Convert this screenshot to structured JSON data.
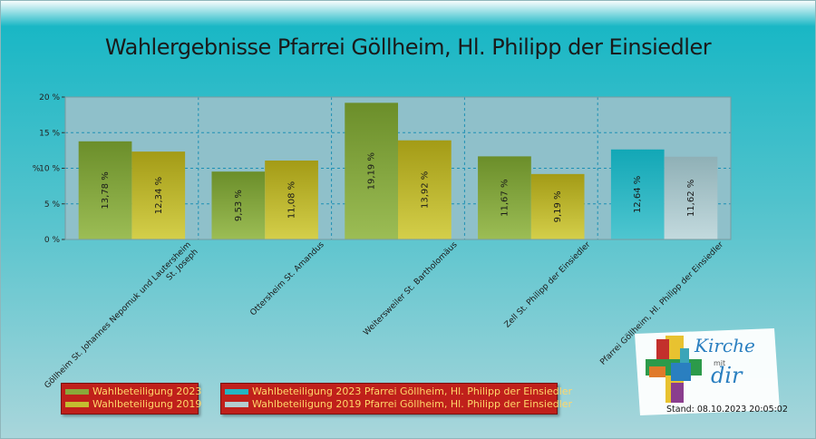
{
  "chart_data": {
    "type": "bar",
    "title": "Wahlergebnisse Pfarrei Göllheim, Hl. Philipp der Einsiedler",
    "ylabel": "%",
    "ylim": [
      0,
      20
    ],
    "yticks": [
      "0 %",
      "5 %",
      "10 %",
      "15 %",
      "20 %"
    ],
    "grid": true,
    "categories": [
      "Göllheim St. Johannes Nepomuk und Lautersheim St. Joseph",
      "Ottersheim St. Amandus",
      "Weitersweiler St. Bartholomäus",
      "Zell St. Philipp der Einsiedler",
      "Pfarrei Göllheim, Hl. Philipp der Einsiedler"
    ],
    "series": [
      {
        "name": "Wahlbeteiligung 2023",
        "values": [
          13.78,
          9.53,
          19.19,
          11.67,
          null
        ],
        "labels": [
          "13,78 %",
          "9,53 %",
          "19,19 %",
          "11,67 %",
          ""
        ],
        "color": "#7a9a32"
      },
      {
        "name": "Wahlbeteiligung 2019",
        "values": [
          12.34,
          11.08,
          13.92,
          9.19,
          null
        ],
        "labels": [
          "12,34 %",
          "11,08 %",
          "13,92 %",
          "9,19 %",
          ""
        ],
        "color": "#b4ae24"
      },
      {
        "name": "Wahlbeteiligung 2023 Pfarrei Göllheim, Hl. Philipp der Einsiedler",
        "values": [
          null,
          null,
          null,
          null,
          12.64
        ],
        "labels": [
          "",
          "",
          "",
          "",
          "12,64 %"
        ],
        "color": "#18aebd"
      },
      {
        "name": "Wahlbeteiligung 2019 Pfarrei Göllheim, Hl. Philipp der Einsiedler",
        "values": [
          null,
          null,
          null,
          null,
          11.62
        ],
        "labels": [
          "",
          "",
          "",
          "",
          "11,62 %"
        ],
        "color": "#a6c6cc"
      }
    ],
    "legend": [
      [
        "Wahlbeteiligung 2023",
        "Wahlbeteiligung 2019"
      ],
      [
        "Wahlbeteiligung 2023 Pfarrei Göllheim, Hl. Philipp der Einsiedler",
        "Wahlbeteiligung 2019 Pfarrei Göllheim, Hl. Philipp der Einsiedler"
      ]
    ]
  },
  "logo": {
    "line1": "Kirche",
    "line2": "mit",
    "line3": "dir"
  },
  "footer": {
    "stand": "Stand: 08.10.2023 20:05:02"
  },
  "colors": {
    "plot_bg": "#8fc0ca",
    "grid": "#1e90b4",
    "legend_bg": "#c0201b",
    "legend_text": "#ffd76a"
  }
}
